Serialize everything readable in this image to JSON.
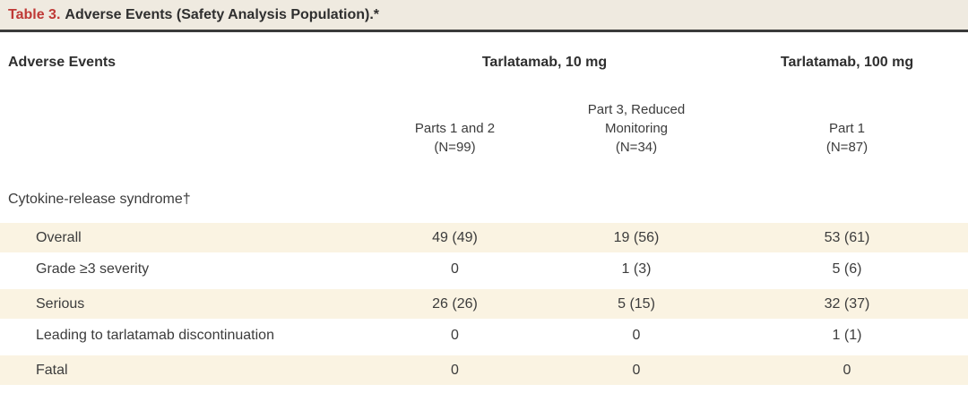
{
  "table": {
    "title_label": "Table 3.",
    "title_text": "Adverse Events (Safety Analysis Population).*",
    "row_header": "Adverse Events",
    "spanners": {
      "dose10": "Tarlatamab, 10 mg",
      "dose100": "Tarlatamab, 100 mg"
    },
    "columns": {
      "col1": {
        "line1": "Parts 1 and 2",
        "line2": "(N=99)"
      },
      "col2": {
        "line1": "Part 3, Reduced",
        "line2": "Monitoring",
        "line3": "(N=34)"
      },
      "col3": {
        "line1": "Part 1",
        "line2": "(N=87)"
      }
    },
    "section_label": "Cytokine-release syndrome†",
    "rows": [
      {
        "label": "Overall",
        "values": [
          "49 (49)",
          "19 (56)",
          "53 (61)"
        ]
      },
      {
        "label": "Grade ≥3 severity",
        "values": [
          "0",
          "1 (3)",
          "5 (6)"
        ]
      },
      {
        "label": "Serious",
        "values": [
          "26 (26)",
          "5 (15)",
          "32 (37)"
        ]
      },
      {
        "label": "Leading to tarlatamab discontinuation",
        "values": [
          "0",
          "0",
          "1 (1)"
        ]
      },
      {
        "label": "Fatal",
        "values": [
          "0",
          "0",
          "0"
        ]
      }
    ],
    "colors": {
      "accent_red": "#bf3936",
      "titlebar_bg": "#efeae0",
      "stripe": "#faf3e2",
      "rule": "#3a3a3a",
      "text": "#3c3c3c"
    }
  }
}
